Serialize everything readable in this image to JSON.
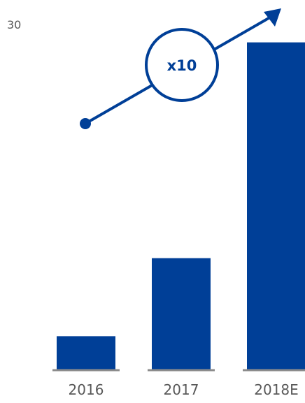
{
  "chart_data": {
    "type": "bar",
    "categories": [
      "2016",
      "2017",
      "2018E"
    ],
    "values": [
      2.9,
      9.7,
      28.5
    ],
    "y_tick_label": "30",
    "ylim": [
      0,
      30
    ],
    "title": "",
    "xlabel": "",
    "ylabel": "",
    "grid": false,
    "annotation": {
      "label": "x10",
      "kind": "growth-arrow",
      "from_category": "2016",
      "to_category": "2018E"
    }
  },
  "colors": {
    "bar": "#003f97",
    "axis": "#8c8c8c",
    "label": "#595959",
    "annotation_fill": "#ffffff",
    "annotation_stroke": "#003f97",
    "annotation_text": "#003f97"
  }
}
